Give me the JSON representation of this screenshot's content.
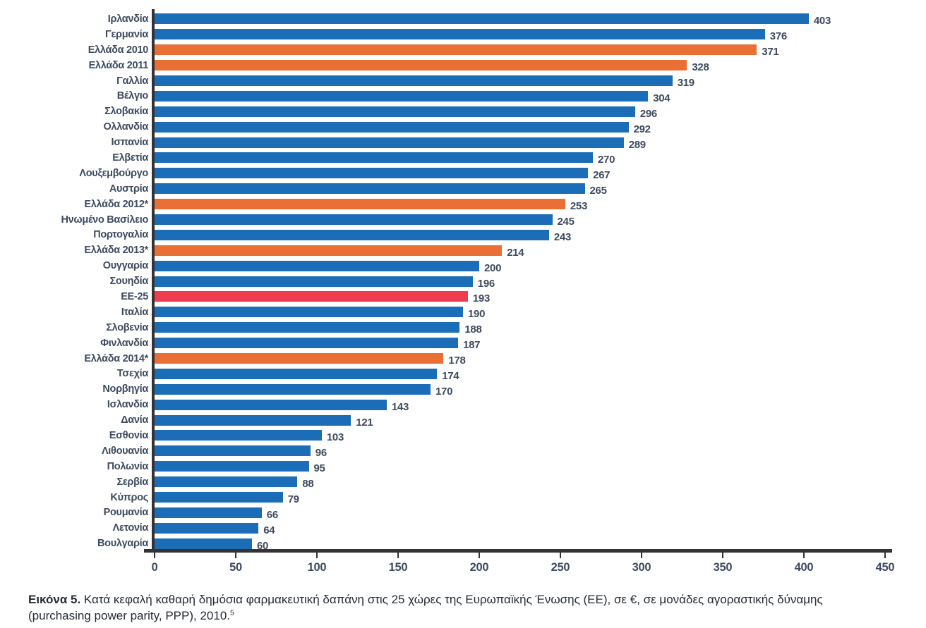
{
  "chart_data": {
    "type": "bar",
    "orientation": "horizontal",
    "xlim": [
      0,
      450
    ],
    "x_ticks": [
      "0",
      "50",
      "100",
      "150",
      "200",
      "250",
      "300",
      "350",
      "400",
      "450"
    ],
    "grid": false,
    "legend": false,
    "colors": {
      "country": "#1a6db6",
      "greece": "#e96f35",
      "eu_average": "#ee3e4d"
    },
    "bars": [
      {
        "label": "Ιρλανδία",
        "value": 403,
        "color": "country"
      },
      {
        "label": "Γερμανία",
        "value": 376,
        "color": "country"
      },
      {
        "label": "Ελλάδα 2010",
        "value": 371,
        "color": "greece"
      },
      {
        "label": "Ελλάδα 2011",
        "value": 328,
        "color": "greece"
      },
      {
        "label": "Γαλλία",
        "value": 319,
        "color": "country"
      },
      {
        "label": "Βέλγιο",
        "value": 304,
        "color": "country"
      },
      {
        "label": "Σλοβακία",
        "value": 296,
        "color": "country"
      },
      {
        "label": "Ολλανδία",
        "value": 292,
        "color": "country"
      },
      {
        "label": "Ισπανία",
        "value": 289,
        "color": "country"
      },
      {
        "label": "Ελβετία",
        "value": 270,
        "color": "country"
      },
      {
        "label": "Λουξεμβούργο",
        "value": 267,
        "color": "country"
      },
      {
        "label": "Αυστρία",
        "value": 265,
        "color": "country"
      },
      {
        "label": "Ελλάδα 2012*",
        "value": 253,
        "color": "greece"
      },
      {
        "label": "Ηνωμένο Βασίλειο",
        "value": 245,
        "color": "country"
      },
      {
        "label": "Πορτογαλία",
        "value": 243,
        "color": "country"
      },
      {
        "label": "Ελλάδα 2013*",
        "value": 214,
        "color": "greece"
      },
      {
        "label": "Ουγγαρία",
        "value": 200,
        "color": "country"
      },
      {
        "label": "Σουηδία",
        "value": 196,
        "color": "country"
      },
      {
        "label": "ΕΕ-25",
        "value": 193,
        "color": "eu_average"
      },
      {
        "label": "Ιταλία",
        "value": 190,
        "color": "country"
      },
      {
        "label": "Σλοβενία",
        "value": 188,
        "color": "country"
      },
      {
        "label": "Φινλανδία",
        "value": 187,
        "color": "country"
      },
      {
        "label": "Ελλάδα 2014*",
        "value": 178,
        "color": "greece"
      },
      {
        "label": "Τσεχία",
        "value": 174,
        "color": "country"
      },
      {
        "label": "Νορβηγία",
        "value": 170,
        "color": "country"
      },
      {
        "label": "Ισλανδία",
        "value": 143,
        "color": "country"
      },
      {
        "label": "Δανία",
        "value": 121,
        "color": "country"
      },
      {
        "label": "Εσθονία",
        "value": 103,
        "color": "country"
      },
      {
        "label": "Λιθουανία",
        "value": 96,
        "color": "country"
      },
      {
        "label": "Πολωνία",
        "value": 95,
        "color": "country"
      },
      {
        "label": "Σερβία",
        "value": 88,
        "color": "country"
      },
      {
        "label": "Κύπρος",
        "value": 79,
        "color": "country"
      },
      {
        "label": "Ρουμανία",
        "value": 66,
        "color": "country"
      },
      {
        "label": "Λετονία",
        "value": 64,
        "color": "country"
      },
      {
        "label": "Βουλγαρία",
        "value": 60,
        "color": "country"
      }
    ]
  },
  "caption": {
    "prefix": "Εικόνα 5.",
    "line1": " Κατά κεφαλή καθαρή δημόσια φαρμακευτική δαπάνη στις 25 χώρες της Ευρωπαϊκής Ένωσης (ΕΕ), σε €, σε μονάδες αγοραστικής δύναμης",
    "line2": "(purchasing power parity, PPP), 2010.",
    "footnote_ref": "5"
  }
}
